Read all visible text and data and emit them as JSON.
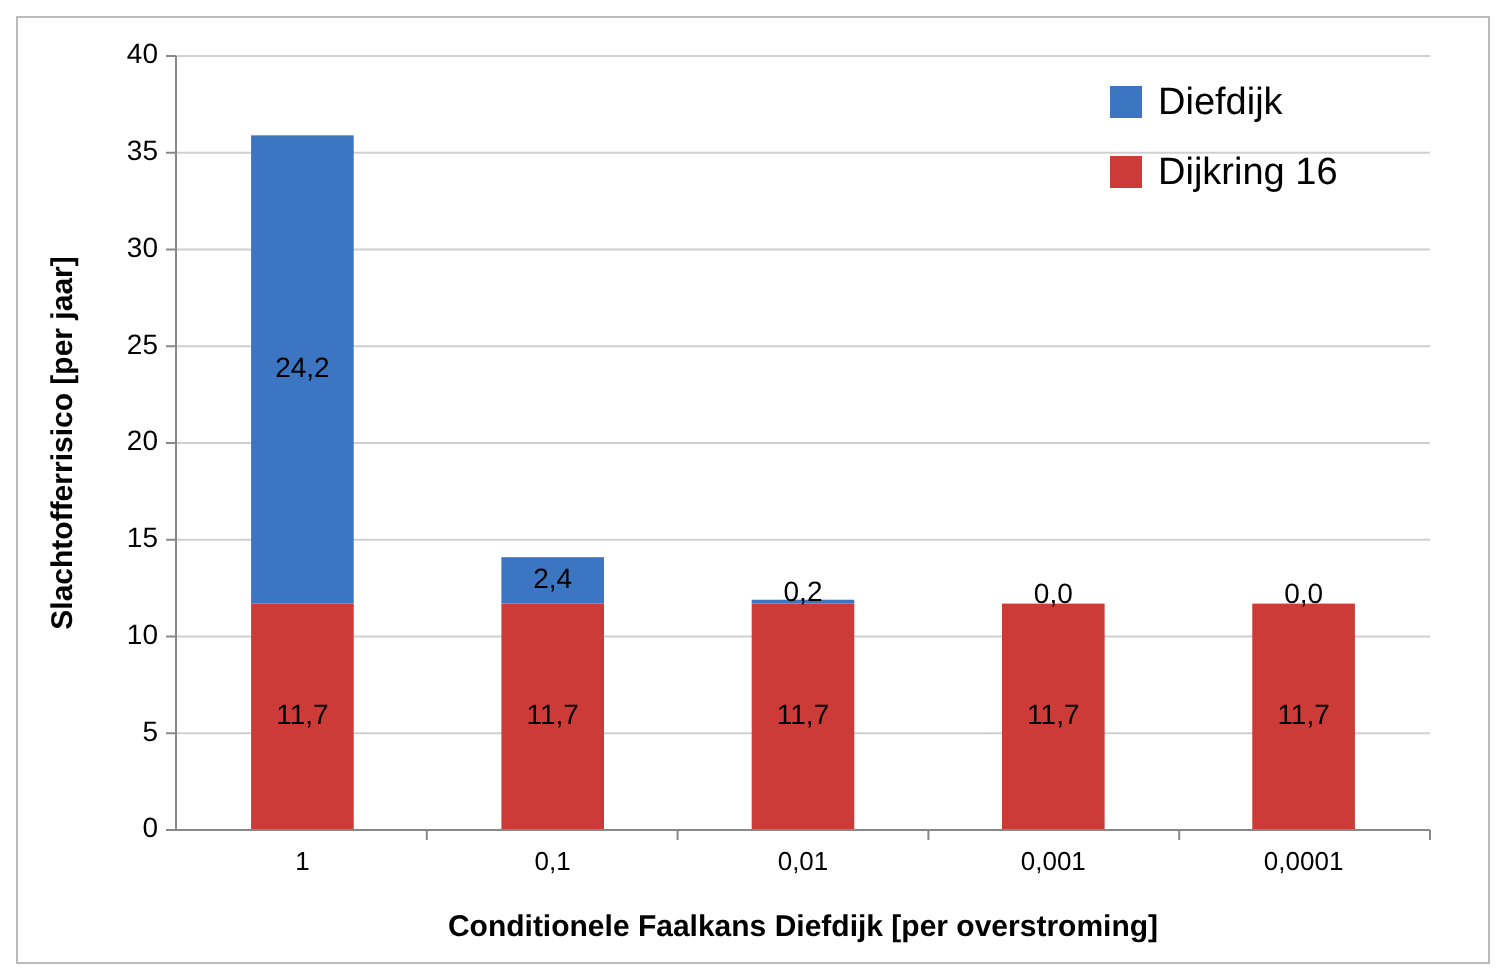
{
  "chart_data": {
    "type": "bar",
    "stacked": true,
    "xlabel": "Conditionele Faalkans Diefdijk [per overstroming]",
    "ylabel": "Slachtofferrisico [per jaar]",
    "categories": [
      "1",
      "0,1",
      "0,01",
      "0,001",
      "0,0001"
    ],
    "series": [
      {
        "name": "Dijkring 16",
        "color": "#cc3b37",
        "values": [
          11.7,
          11.7,
          11.7,
          11.7,
          11.7
        ],
        "value_labels": [
          "11,7",
          "11,7",
          "11,7",
          "11,7",
          "11,7"
        ]
      },
      {
        "name": "Diefdijk",
        "color": "#3c76c3",
        "values": [
          24.2,
          2.4,
          0.2,
          0.0,
          0.0
        ],
        "value_labels": [
          "24,2",
          "2,4",
          "0,2",
          "0,0",
          "0,0"
        ]
      }
    ],
    "ylim": [
      0,
      40
    ],
    "yticks": [
      0,
      5,
      10,
      15,
      20,
      25,
      30,
      35,
      40
    ],
    "grid": "y",
    "legend": "top right"
  }
}
